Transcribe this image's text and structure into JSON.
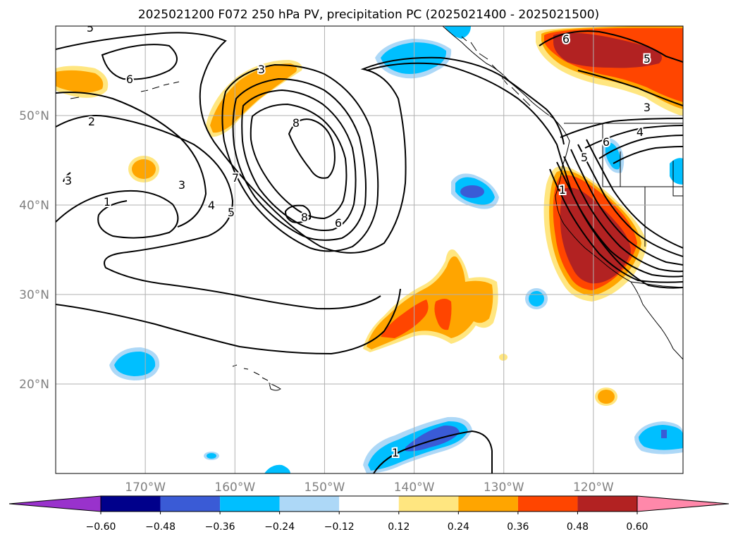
{
  "chart_data": {
    "type": "contour-map",
    "title": "2025021200 F072 250 hPa PV, precipitation PC (2025021400 - 2025021500)",
    "xlim": [
      -180,
      -110
    ],
    "ylim": [
      10,
      60
    ],
    "grid": true,
    "x_ticks": [
      -170,
      -160,
      -150,
      -140,
      -130,
      -120
    ],
    "x_tick_labels": [
      "170°W",
      "160°W",
      "150°W",
      "140°W",
      "130°W",
      "120°W"
    ],
    "y_ticks": [
      20,
      30,
      40,
      50
    ],
    "y_tick_labels": [
      "20°N",
      "30°N",
      "40°N",
      "50°N"
    ],
    "colorbar": {
      "orientation": "horizontal",
      "extend": "both",
      "bounds": [
        -0.6,
        -0.48,
        -0.36,
        -0.24,
        -0.12,
        0.12,
        0.24,
        0.36,
        0.48,
        0.6
      ],
      "tick_labels": [
        "−0.60",
        "−0.48",
        "−0.36",
        "−0.24",
        "−0.12",
        "0.12",
        "0.24",
        "0.36",
        "0.48",
        "0.60"
      ],
      "colors": [
        "#9932cc",
        "#00008b",
        "#3a5bd6",
        "#00bfff",
        "#add8f7",
        "#ffffff",
        "#ffe680",
        "#ffa500",
        "#ff4500",
        "#b22222",
        "#ff88aa"
      ]
    },
    "pv_contour_levels": [
      1,
      2,
      3,
      4,
      5,
      6,
      7,
      8
    ],
    "pv_contour_labels": [
      {
        "value": "5",
        "lon": -176,
        "lat": 60
      },
      {
        "value": "6",
        "lon": -170,
        "lat": 55.8
      },
      {
        "value": "2",
        "lon": -174,
        "lat": 49.7
      },
      {
        "value": "3",
        "lon": -177,
        "lat": 42.8
      },
      {
        "value": "1",
        "lon": -171,
        "lat": 40.4
      },
      {
        "value": "3",
        "lon": -166,
        "lat": 42.2
      },
      {
        "value": "4",
        "lon": -164,
        "lat": 39.8
      },
      {
        "value": "5",
        "lon": -162,
        "lat": 38.7
      },
      {
        "value": "7",
        "lon": -160,
        "lat": 42.5
      },
      {
        "value": "8",
        "lon": -156,
        "lat": 49.3
      },
      {
        "value": "8",
        "lon": -156,
        "lat": 39.1
      },
      {
        "value": "6",
        "lon": -149.5,
        "lat": 37.9
      },
      {
        "value": "3",
        "lon": -163,
        "lat": 56.7
      },
      {
        "value": "6",
        "lon": -123,
        "lat": 59.1
      },
      {
        "value": "5",
        "lon": -117,
        "lat": 57.4
      },
      {
        "value": "3",
        "lon": -115.5,
        "lat": 50.7
      },
      {
        "value": "4",
        "lon": -113.5,
        "lat": 48.2
      },
      {
        "value": "5",
        "lon": -121.5,
        "lat": 45.5
      },
      {
        "value": "6",
        "lon": -119,
        "lat": 46.7
      },
      {
        "value": "1",
        "lon": -124,
        "lat": 41.8
      },
      {
        "value": "1",
        "lon": -141.5,
        "lat": 12
      }
    ],
    "precip_anomaly_regions": [
      {
        "category": "0.24",
        "center": [
          -178,
          54.8
        ],
        "note": "left edge band"
      },
      {
        "category": "0.36",
        "center": [
          -157.5,
          52
        ]
      },
      {
        "category": "0.24",
        "center": [
          -170,
          43.7
        ]
      },
      {
        "category": "0.60",
        "center": [
          -120,
          57.5
        ],
        "note": "NE corner, strong positive"
      },
      {
        "category": "0.48",
        "center": [
          -121,
          37.5
        ],
        "note": "California coast, strong positive"
      },
      {
        "category": "0.36",
        "center": [
          -138,
          28
        ]
      },
      {
        "category": "0.24",
        "center": [
          -130,
          21
        ],
        "note": "small dot"
      },
      {
        "category": "0.24",
        "center": [
          -120.5,
          19
        ],
        "note": "small"
      },
      {
        "category": "-0.36",
        "center": [
          -141,
          56.5
        ]
      },
      {
        "category": "-0.36",
        "center": [
          -135.5,
          59.5
        ]
      },
      {
        "category": "-0.48",
        "center": [
          -136,
          41.4
        ]
      },
      {
        "category": "-0.36",
        "center": [
          -126.5,
          29.5
        ]
      },
      {
        "category": "-0.36",
        "center": [
          -119.5,
          46.3
        ]
      },
      {
        "category": "-0.36",
        "center": [
          -111,
          44
        ]
      },
      {
        "category": "-0.36",
        "center": [
          -169,
          22
        ]
      },
      {
        "category": "-0.48",
        "center": [
          -138,
          13.5
        ]
      },
      {
        "category": "-0.36",
        "center": [
          -112.5,
          14.5
        ]
      },
      {
        "category": "-0.24",
        "center": [
          -162,
          12
        ]
      }
    ]
  }
}
